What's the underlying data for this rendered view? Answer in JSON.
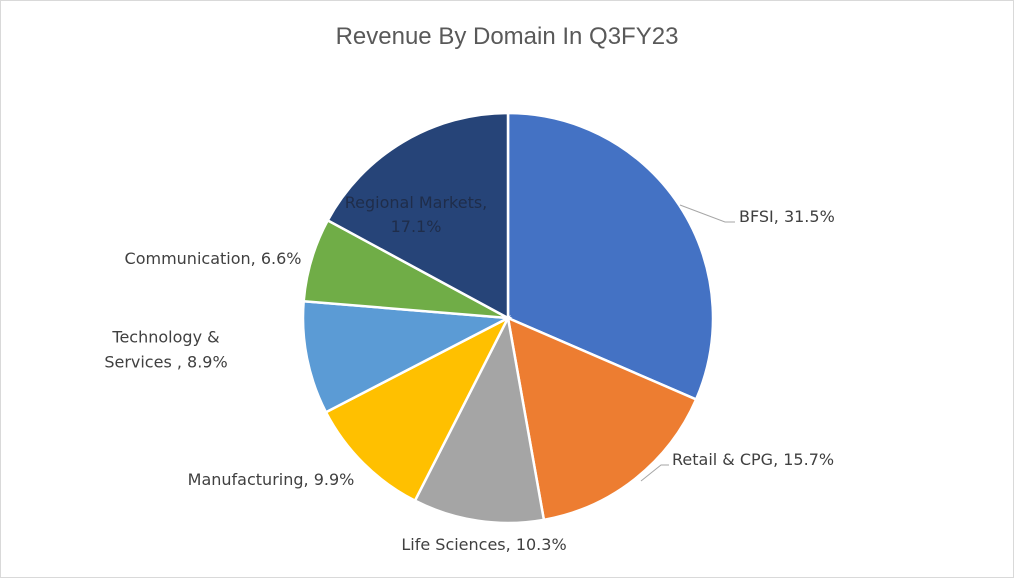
{
  "chart_data": {
    "type": "pie",
    "title": "Revenue By Domain In Q3FY23",
    "slices": [
      {
        "label": "BFSI",
        "value": 31.5,
        "color": "#4472C4",
        "text": "BFSI, 31.5%"
      },
      {
        "label": "Retail & CPG",
        "value": 15.7,
        "color": "#ED7D31",
        "text": "Retail & CPG, 15.7%"
      },
      {
        "label": "Life Sciences",
        "value": 10.3,
        "color": "#A5A5A5",
        "text": "Life Sciences, 10.3%"
      },
      {
        "label": "Manufacturing",
        "value": 9.9,
        "color": "#FFC000",
        "text": "Manufacturing, 9.9%"
      },
      {
        "label": "Technology & Services",
        "value": 8.9,
        "color": "#5B9BD5",
        "text": "Technology & Services , 8.9%",
        "lines": [
          "Technology &",
          "Services , 8.9%"
        ]
      },
      {
        "label": "Communication",
        "value": 6.6,
        "color": "#70AD47",
        "text": "Communication, 6.6%"
      },
      {
        "label": "Regional Markets",
        "value": 17.1,
        "color": "#264478",
        "text": "Regional Markets, 17.1%",
        "lines": [
          "Regional Markets,",
          "17.1%"
        ]
      }
    ],
    "legend": "none"
  }
}
